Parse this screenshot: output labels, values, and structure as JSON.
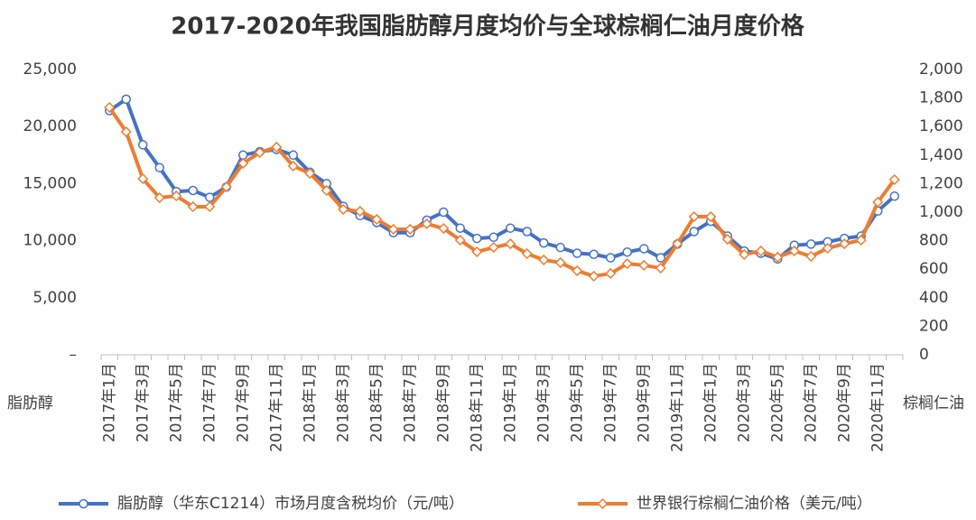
{
  "chart_data": {
    "type": "line",
    "title": "2017-2020年我国脂肪醇月度均价与全球棕榈仁油月度价格",
    "y_label": "脂肪醇",
    "y2_label": "棕榈仁油",
    "categories": [
      "2017年1月",
      null,
      "2017年3月",
      null,
      "2017年5月",
      null,
      "2017年7月",
      null,
      "2017年9月",
      null,
      "2017年11月",
      null,
      "2018年1月",
      null,
      "2018年3月",
      null,
      "2018年5月",
      null,
      "2018年7月",
      null,
      "2018年9月",
      null,
      "2018年11月",
      null,
      "2019年1月",
      null,
      "2019年3月",
      null,
      "2019年5月",
      null,
      "2019年7月",
      null,
      "2019年9月",
      null,
      "2019年11月",
      null,
      "2020年1月",
      null,
      "2020年3月",
      null,
      "2020年5月",
      null,
      "2020年7月",
      null,
      "2020年9月",
      null,
      "2020年11月",
      null
    ],
    "series": [
      {
        "name": "脂肪醇（华东C1214）市场月度含税均价（元/吨）",
        "color": "#4472c4",
        "marker": "circle",
        "values": [
          21400,
          22400,
          18400,
          16400,
          14300,
          14400,
          13800,
          14700,
          17500,
          17800,
          18000,
          17500,
          16000,
          15000,
          13000,
          12200,
          11600,
          10700,
          10700,
          11800,
          12500,
          11100,
          10200,
          10300,
          11100,
          10800,
          9800,
          9400,
          8900,
          8800,
          8500,
          9000,
          9300,
          8500,
          9700,
          10800,
          11700,
          10400,
          9100,
          8900,
          8400,
          9600,
          9700,
          9900,
          10200,
          10400,
          12600,
          13900
        ]
      },
      {
        "name": "世界银行棕榈仁油价格（美元/吨）",
        "color": "#ed7d31",
        "marker": "diamond",
        "axis": "y2",
        "values": [
          1734,
          1563,
          1234,
          1101,
          1114,
          1038,
          1038,
          1177,
          1342,
          1418,
          1456,
          1323,
          1272,
          1152,
          1019,
          1006,
          949,
          880,
          880,
          918,
          886,
          804,
          722,
          753,
          778,
          709,
          665,
          646,
          589,
          551,
          570,
          639,
          627,
          608,
          778,
          968,
          968,
          810,
          703,
          728,
          684,
          728,
          690,
          747,
          778,
          804,
          1070,
          1228
        ]
      }
    ],
    "ylim": [
      0,
      25000
    ],
    "yticks": [
      {
        "value": 0,
        "label": "–"
      },
      {
        "value": 5000,
        "label": "5,000"
      },
      {
        "value": 10000,
        "label": "10,000"
      },
      {
        "value": 15000,
        "label": "15,000"
      },
      {
        "value": 20000,
        "label": "20,000"
      },
      {
        "value": 25000,
        "label": "25,000"
      }
    ],
    "y2lim": [
      0,
      2000
    ],
    "y2ticks": [
      0,
      200,
      400,
      600,
      800,
      {
        "value": 1000,
        "label": "1,000"
      },
      {
        "value": 1200,
        "label": "1,200"
      },
      {
        "value": 1400,
        "label": "1,400"
      },
      {
        "value": 1600,
        "label": "1,600"
      },
      {
        "value": 1800,
        "label": "1,800"
      },
      {
        "value": 2000,
        "label": "2,000"
      }
    ],
    "grid": false,
    "legend": "bottom"
  }
}
